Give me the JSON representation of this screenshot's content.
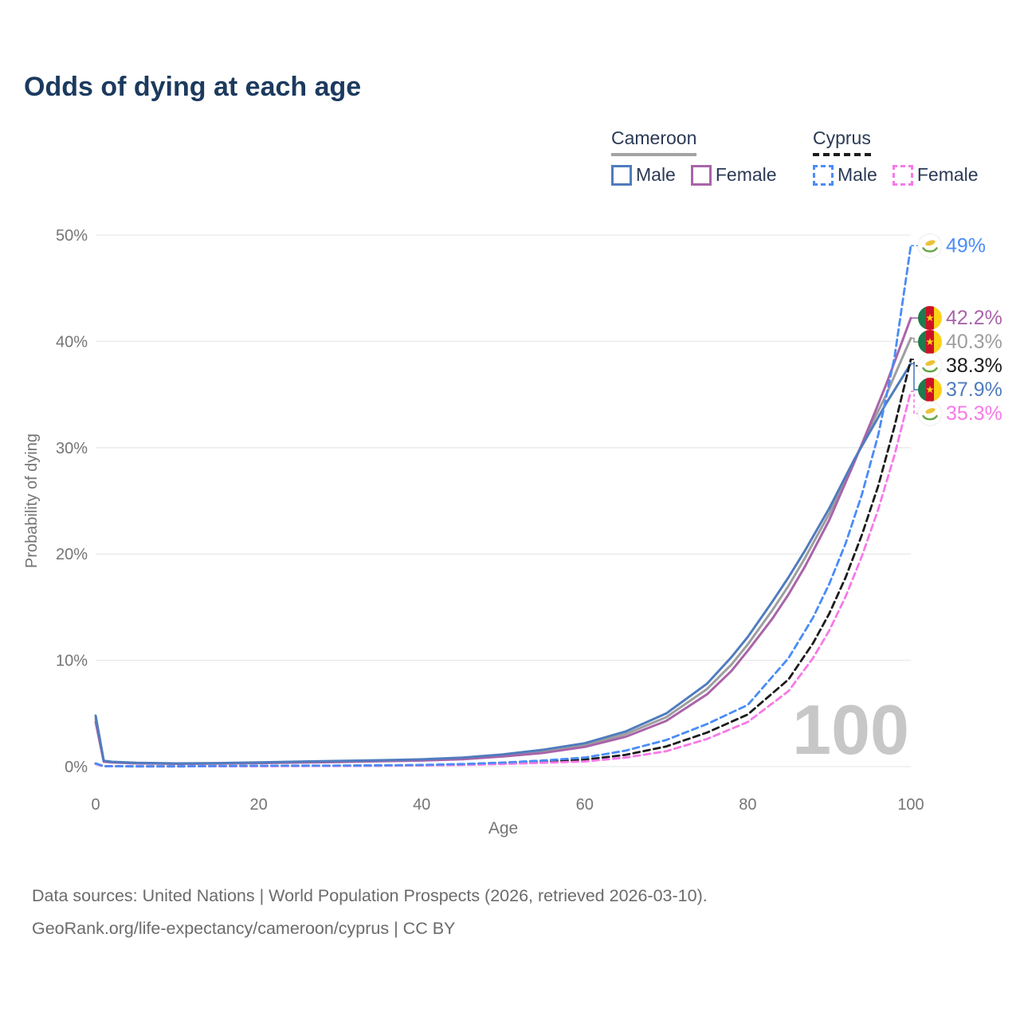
{
  "title": "Odds of dying at each age",
  "legend": {
    "groups": [
      {
        "label": "Cameroon",
        "line_style": "solid",
        "underline_color": "#a3a3a3",
        "items": [
          {
            "label": "Male",
            "series": "cameroon-male",
            "color": "#4f7cbe"
          },
          {
            "label": "Female",
            "series": "cameroon-female",
            "color": "#a964a9"
          }
        ]
      },
      {
        "label": "Cyprus",
        "line_style": "dashed",
        "underline_color": "#1c1c1c",
        "items": [
          {
            "label": "Male",
            "series": "cyprus-male",
            "color": "#4a8cf7"
          },
          {
            "label": "Female",
            "series": "cyprus-female",
            "color": "#f779e8"
          }
        ]
      }
    ]
  },
  "watermark": "100",
  "footer": {
    "line1": "Data sources: United Nations | World Population Prospects (2026, retrieved 2026-03-10).",
    "line2": "GeoRank.org/life-expectancy/cameroon/cyprus | CC BY"
  },
  "chart_data": {
    "type": "line",
    "title": "Odds of dying at each age",
    "xlabel": "Age",
    "ylabel": "Probability of dying",
    "xlim": [
      0,
      100
    ],
    "ylim": [
      0,
      50
    ],
    "x_ticks": [
      0,
      20,
      40,
      60,
      80,
      100
    ],
    "y_ticks": [
      "0%",
      "10%",
      "20%",
      "30%",
      "40%",
      "50%"
    ],
    "y_tick_values": [
      0,
      10,
      20,
      30,
      40,
      50
    ],
    "grid": "horizontal-only",
    "legend_position": "top-right",
    "colors": {
      "title_text": "#1c3a5e",
      "axis_text": "#757575",
      "gridline": "#e9e9e9",
      "watermark": "#c7c7c7",
      "footer_text": "#6b6b6b"
    },
    "series": [
      {
        "id": "cameroon-male",
        "name": "Cameroon Male",
        "country": "Cameroon",
        "sex": "male",
        "color": "#4f7cbe",
        "dash": "solid",
        "flag": "cameroon-flag-icon",
        "end_label": "37.9%",
        "points": [
          [
            0,
            4.8
          ],
          [
            1,
            0.55
          ],
          [
            2,
            0.45
          ],
          [
            5,
            0.35
          ],
          [
            10,
            0.3
          ],
          [
            15,
            0.33
          ],
          [
            20,
            0.4
          ],
          [
            25,
            0.47
          ],
          [
            30,
            0.53
          ],
          [
            35,
            0.6
          ],
          [
            40,
            0.68
          ],
          [
            45,
            0.85
          ],
          [
            50,
            1.15
          ],
          [
            55,
            1.6
          ],
          [
            60,
            2.2
          ],
          [
            65,
            3.3
          ],
          [
            70,
            5.0
          ],
          [
            75,
            7.8
          ],
          [
            78,
            10.3
          ],
          [
            80,
            12.2
          ],
          [
            83,
            15.5
          ],
          [
            85,
            17.8
          ],
          [
            87,
            20.3
          ],
          [
            90,
            24.3
          ],
          [
            93,
            28.8
          ],
          [
            95,
            31.5
          ],
          [
            97,
            34.2
          ],
          [
            100,
            37.9
          ]
        ]
      },
      {
        "id": "cameroon-female",
        "name": "Cameroon Female",
        "country": "Cameroon",
        "sex": "female",
        "color": "#a964a9",
        "dash": "solid",
        "flag": "cameroon-flag-icon",
        "end_label": "42.2%",
        "points": [
          [
            0,
            4.2
          ],
          [
            1,
            0.46
          ],
          [
            2,
            0.4
          ],
          [
            5,
            0.3
          ],
          [
            10,
            0.26
          ],
          [
            15,
            0.28
          ],
          [
            20,
            0.33
          ],
          [
            25,
            0.38
          ],
          [
            30,
            0.43
          ],
          [
            35,
            0.5
          ],
          [
            40,
            0.57
          ],
          [
            45,
            0.7
          ],
          [
            50,
            0.95
          ],
          [
            55,
            1.3
          ],
          [
            60,
            1.85
          ],
          [
            65,
            2.8
          ],
          [
            70,
            4.3
          ],
          [
            75,
            6.8
          ],
          [
            78,
            9.0
          ],
          [
            80,
            10.9
          ],
          [
            83,
            13.9
          ],
          [
            85,
            16.2
          ],
          [
            87,
            18.8
          ],
          [
            90,
            23.2
          ],
          [
            93,
            28.5
          ],
          [
            95,
            32.2
          ],
          [
            97,
            36.0
          ],
          [
            100,
            42.2
          ]
        ]
      },
      {
        "id": "cameroon-all",
        "name": "Cameroon",
        "country": "Cameroon",
        "sex": "all",
        "color": "#9e9e9e",
        "dash": "solid",
        "flag": "cameroon-flag-icon",
        "end_label": "40.3%",
        "points": [
          [
            0,
            4.5
          ],
          [
            1,
            0.5
          ],
          [
            2,
            0.42
          ],
          [
            5,
            0.33
          ],
          [
            10,
            0.28
          ],
          [
            15,
            0.3
          ],
          [
            20,
            0.36
          ],
          [
            25,
            0.42
          ],
          [
            30,
            0.48
          ],
          [
            35,
            0.55
          ],
          [
            40,
            0.62
          ],
          [
            45,
            0.78
          ],
          [
            50,
            1.05
          ],
          [
            55,
            1.45
          ],
          [
            60,
            2.0
          ],
          [
            65,
            3.05
          ],
          [
            70,
            4.65
          ],
          [
            75,
            7.3
          ],
          [
            78,
            9.6
          ],
          [
            80,
            11.5
          ],
          [
            83,
            14.7
          ],
          [
            85,
            17.0
          ],
          [
            87,
            19.6
          ],
          [
            90,
            23.8
          ],
          [
            93,
            28.7
          ],
          [
            95,
            31.9
          ],
          [
            97,
            35.0
          ],
          [
            100,
            40.3
          ]
        ]
      },
      {
        "id": "cyprus-male",
        "name": "Cyprus Male",
        "country": "Cyprus",
        "sex": "male",
        "color": "#4a8cf7",
        "dash": "dashed",
        "flag": "cyprus-flag-icon",
        "end_label": "49%",
        "points": [
          [
            0,
            0.3
          ],
          [
            1,
            0.04
          ],
          [
            5,
            0.03
          ],
          [
            10,
            0.03
          ],
          [
            15,
            0.05
          ],
          [
            20,
            0.08
          ],
          [
            25,
            0.09
          ],
          [
            30,
            0.1
          ],
          [
            35,
            0.12
          ],
          [
            40,
            0.16
          ],
          [
            45,
            0.24
          ],
          [
            50,
            0.38
          ],
          [
            55,
            0.58
          ],
          [
            60,
            0.85
          ],
          [
            65,
            1.5
          ],
          [
            70,
            2.5
          ],
          [
            75,
            4.0
          ],
          [
            80,
            5.8
          ],
          [
            85,
            10.2
          ],
          [
            88,
            14.0
          ],
          [
            90,
            17.2
          ],
          [
            92,
            21.0
          ],
          [
            94,
            25.6
          ],
          [
            96,
            31.2
          ],
          [
            98,
            38.5
          ],
          [
            100,
            49.0
          ]
        ]
      },
      {
        "id": "cyprus-female",
        "name": "Cyprus Female",
        "country": "Cyprus",
        "sex": "female",
        "color": "#f779e8",
        "dash": "dashed",
        "flag": "cyprus-flag-icon",
        "end_label": "35.3%",
        "points": [
          [
            0,
            0.24
          ],
          [
            1,
            0.03
          ],
          [
            5,
            0.02
          ],
          [
            10,
            0.02
          ],
          [
            15,
            0.03
          ],
          [
            20,
            0.04
          ],
          [
            25,
            0.05
          ],
          [
            30,
            0.06
          ],
          [
            35,
            0.08
          ],
          [
            40,
            0.11
          ],
          [
            45,
            0.16
          ],
          [
            50,
            0.25
          ],
          [
            55,
            0.36
          ],
          [
            60,
            0.48
          ],
          [
            65,
            0.85
          ],
          [
            70,
            1.45
          ],
          [
            75,
            2.6
          ],
          [
            80,
            4.2
          ],
          [
            85,
            7.1
          ],
          [
            88,
            10.2
          ],
          [
            90,
            12.8
          ],
          [
            92,
            16.0
          ],
          [
            94,
            19.8
          ],
          [
            96,
            24.2
          ],
          [
            98,
            29.3
          ],
          [
            100,
            35.3
          ]
        ]
      },
      {
        "id": "cyprus-all",
        "name": "Cyprus",
        "country": "Cyprus",
        "sex": "all",
        "color": "#1c1c1c",
        "dash": "dashed",
        "flag": "cyprus-flag-icon",
        "end_label": "38.3%",
        "points": [
          [
            0,
            0.27
          ],
          [
            1,
            0.035
          ],
          [
            5,
            0.025
          ],
          [
            10,
            0.025
          ],
          [
            15,
            0.04
          ],
          [
            20,
            0.06
          ],
          [
            25,
            0.07
          ],
          [
            30,
            0.08
          ],
          [
            35,
            0.1
          ],
          [
            40,
            0.13
          ],
          [
            45,
            0.2
          ],
          [
            50,
            0.31
          ],
          [
            55,
            0.47
          ],
          [
            60,
            0.65
          ],
          [
            65,
            1.1
          ],
          [
            70,
            1.9
          ],
          [
            75,
            3.2
          ],
          [
            80,
            4.9
          ],
          [
            85,
            8.2
          ],
          [
            88,
            11.6
          ],
          [
            90,
            14.4
          ],
          [
            92,
            17.8
          ],
          [
            94,
            21.8
          ],
          [
            96,
            26.4
          ],
          [
            98,
            32.0
          ],
          [
            100,
            38.3
          ]
        ]
      }
    ]
  }
}
